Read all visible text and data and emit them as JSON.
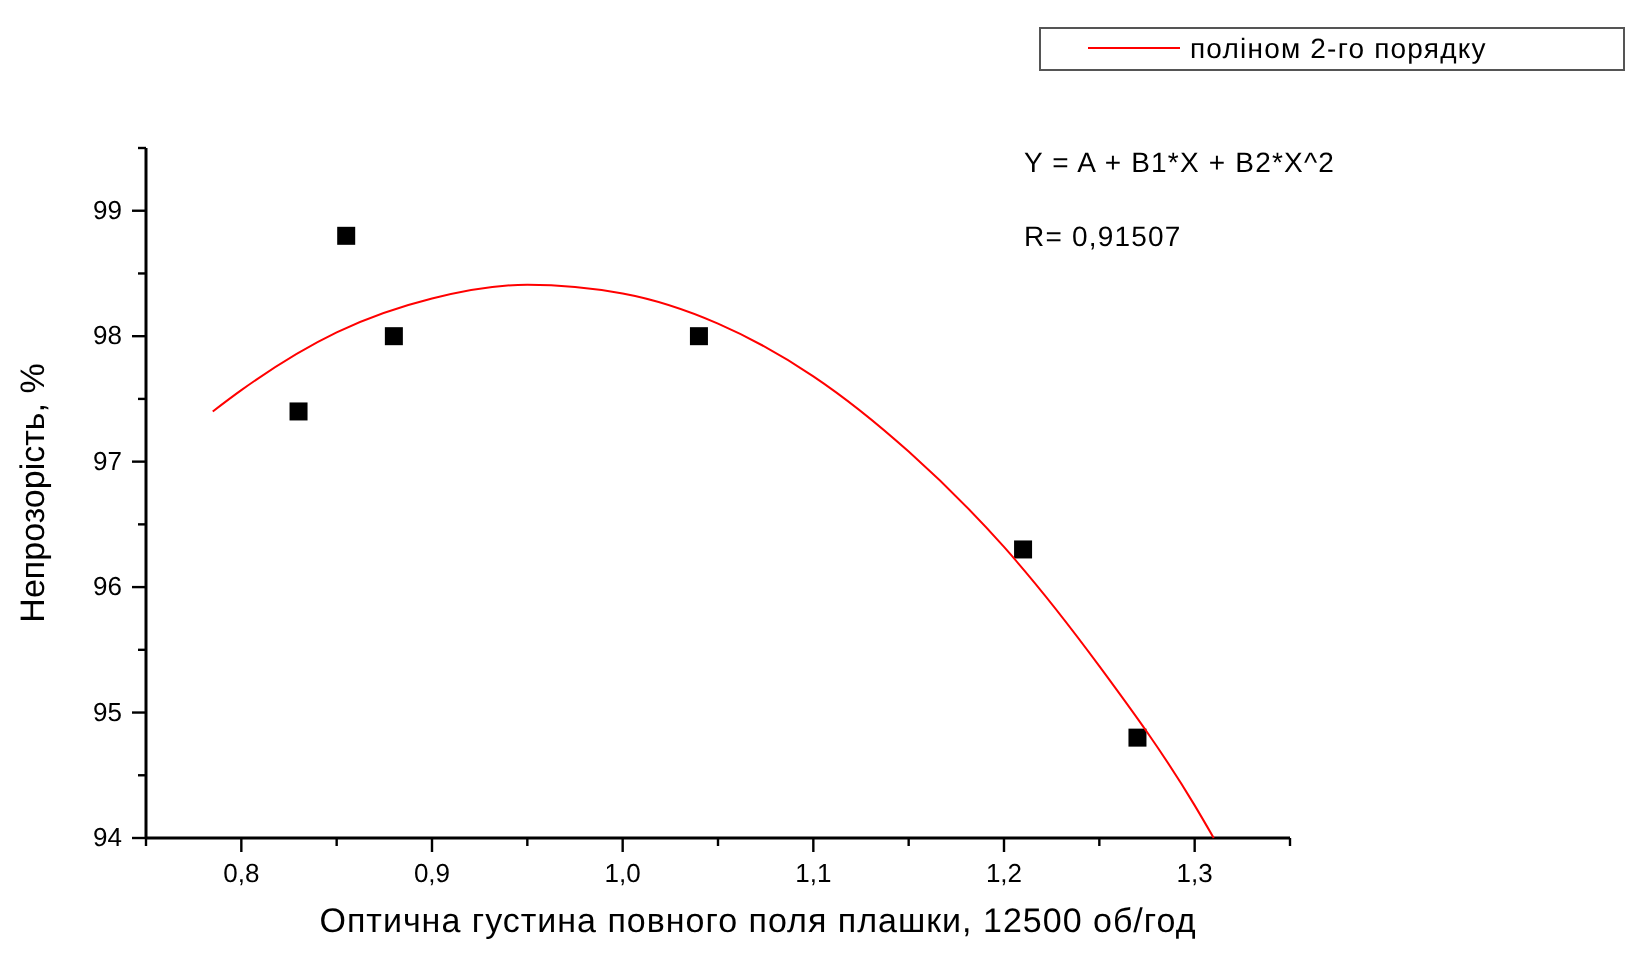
{
  "chart_data": {
    "type": "scatter",
    "xlabel": "Оптична густина повного поля плашки, 12500 об/год",
    "ylabel": "Непрозорість, %",
    "x": [
      0.83,
      0.855,
      0.88,
      1.04,
      1.21,
      1.27
    ],
    "series": [
      {
        "color": "#000000",
        "marker": "square",
        "values": [
          97.4,
          98.8,
          98.0,
          98.0,
          96.3,
          94.8
        ]
      },
      {
        "type": "line",
        "name": "поліном 2-го порядку",
        "color": "#ff0000",
        "marker": "none",
        "line_style": "solid",
        "x": [
          0.785,
          0.8,
          0.85,
          0.9,
          0.95,
          1.0,
          1.05,
          1.1,
          1.15,
          1.2,
          1.25,
          1.3,
          1.31
        ],
        "values": [
          97.4,
          97.57,
          98.03,
          98.3,
          98.41,
          98.34,
          98.1,
          97.68,
          97.08,
          96.32,
          95.37,
          94.26,
          94.0
        ]
      }
    ],
    "annotations": [
      "Y = A + B1*X + B2*X^2",
      "R= 0,91507"
    ],
    "xlim": [
      0.75,
      1.35
    ],
    "xticks": [
      {
        "value": 0.75,
        "label": null
      },
      {
        "value": 0.8,
        "label": "0,8"
      },
      {
        "value": 0.85,
        "label": null
      },
      {
        "value": 0.9,
        "label": "0,9"
      },
      {
        "value": 0.95,
        "label": null
      },
      {
        "value": 1.0,
        "label": "1,0"
      },
      {
        "value": 1.05,
        "label": null
      },
      {
        "value": 1.1,
        "label": "1,1"
      },
      {
        "value": 1.15,
        "label": null
      },
      {
        "value": 1.2,
        "label": "1,2"
      },
      {
        "value": 1.25,
        "label": null
      },
      {
        "value": 1.3,
        "label": "1,3"
      },
      {
        "value": 1.35,
        "label": null
      }
    ],
    "ylim": [
      94,
      99.5
    ],
    "yticks": [
      94,
      {
        "value": 94.5,
        "label": null
      },
      95,
      {
        "value": 95.5,
        "label": null
      },
      96,
      {
        "value": 96.5,
        "label": null
      },
      97,
      {
        "value": 97.5,
        "label": null
      },
      98,
      {
        "value": 98.5,
        "label": null
      },
      99,
      {
        "value": 99.5,
        "label": null
      }
    ],
    "grid": false,
    "legend": "top right"
  }
}
